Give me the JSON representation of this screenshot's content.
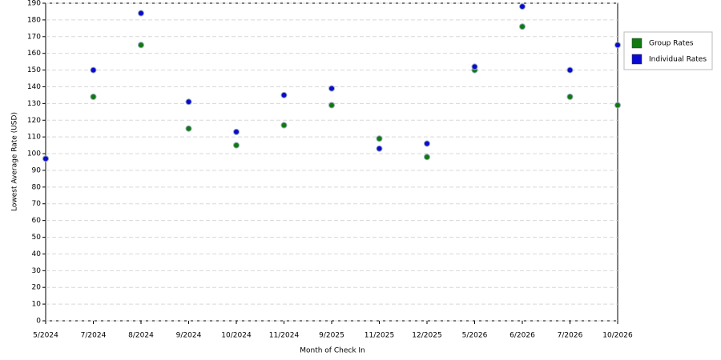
{
  "chart_data": {
    "type": "line",
    "x_label": "Month of Check In",
    "y_label": "Lowest Average Rate (USD)",
    "categories": [
      "5/2024",
      "7/2024",
      "8/2024",
      "9/2024",
      "10/2024",
      "11/2024",
      "9/2025",
      "11/2025",
      "12/2025",
      "5/2026",
      "6/2026",
      "7/2026",
      "10/2026"
    ],
    "series": [
      {
        "name": "Group Rates",
        "color": "#0f7a0f",
        "values": [
          97,
          134,
          165,
          115,
          105,
          117,
          129,
          109,
          98,
          150,
          176,
          134,
          129
        ]
      },
      {
        "name": "Individual Rates",
        "color": "#0a0ad0",
        "values": [
          97,
          150,
          184,
          131,
          113,
          135,
          139,
          103,
          106,
          152,
          188,
          150,
          165
        ]
      }
    ],
    "ylim": [
      0,
      190
    ],
    "yticks": [
      0,
      10,
      20,
      30,
      40,
      50,
      60,
      70,
      80,
      90,
      100,
      110,
      120,
      130,
      140,
      150,
      160,
      170,
      180,
      190
    ],
    "grid": true,
    "legend": "right"
  }
}
